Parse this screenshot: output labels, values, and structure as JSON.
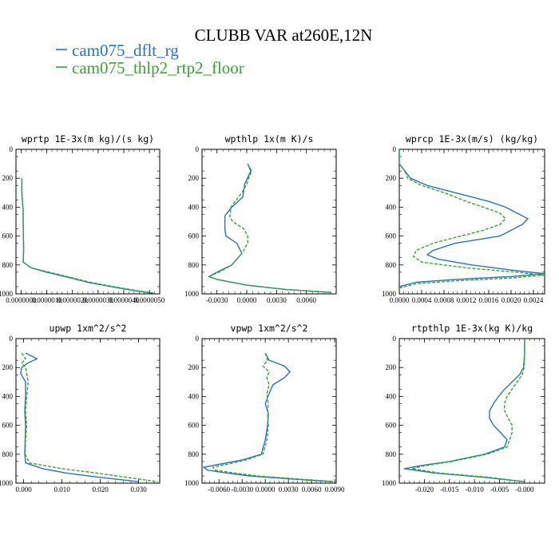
{
  "title": "CLUBB VAR at260E,12N",
  "legend": [
    {
      "name": "cam075_dflt_rg",
      "color": "#2b72b8",
      "dash": "solid"
    },
    {
      "name": "cam075_thlp2_rtp2_floor",
      "color": "#3aa335",
      "dash": "dashed"
    }
  ],
  "chart_data": [
    {
      "type": "line",
      "title": "wprtp  1E-3x(m kg)/(s kg)",
      "xlim": [
        -2e-07,
        5.4e-06
      ],
      "xticks": [
        0,
        1e-06,
        2e-06,
        3e-06,
        4e-06,
        5e-06
      ],
      "xtick_labels": [
        "0.0000000",
        "0.0000010",
        "0.0000020",
        "0.0000030",
        "0.0000040",
        "0.0000050"
      ],
      "ylim": [
        1000,
        0
      ],
      "yticks": [
        1000,
        800,
        600,
        400,
        200,
        0
      ],
      "series": [
        {
          "name": "cam075_dflt_rg",
          "y": [
            200,
            300,
            380,
            420,
            500,
            600,
            700,
            780,
            820,
            850,
            880,
            920,
            950,
            980,
            995
          ],
          "x": [
            3e-08,
            3e-08,
            6e-08,
            8e-08,
            8e-08,
            9e-08,
            1e-07,
            8e-08,
            4e-07,
            1e-06,
            1.7e-06,
            2.6e-06,
            3.5e-06,
            4.5e-06,
            5.1e-06
          ]
        },
        {
          "name": "cam075_thlp2_rtp2_floor",
          "y": [
            200,
            300,
            380,
            420,
            500,
            600,
            700,
            780,
            820,
            850,
            880,
            920,
            950,
            980,
            995
          ],
          "x": [
            3e-08,
            3e-08,
            6e-08,
            8e-08,
            8e-08,
            9e-08,
            1e-07,
            8e-08,
            4e-07,
            1.1e-06,
            1.8e-06,
            2.7e-06,
            3.6e-06,
            4.6e-06,
            5.2e-06
          ]
        }
      ]
    },
    {
      "type": "line",
      "title": "wpthlp  1x(m K)/s",
      "xlim": [
        -0.0045,
        0.009
      ],
      "xticks": [
        -0.003,
        0,
        0.003,
        0.006
      ],
      "xtick_labels": [
        "-0.0030",
        "0.0000",
        "0.0030",
        "0.0060"
      ],
      "ylim": [
        1000,
        0
      ],
      "yticks": [
        1000,
        800,
        600,
        400,
        200,
        0
      ],
      "series": [
        {
          "name": "cam075_dflt_rg",
          "y": [
            100,
            150,
            180,
            240,
            330,
            400,
            460,
            500,
            550,
            600,
            650,
            720,
            800,
            850,
            880,
            900,
            940,
            970,
            990
          ],
          "x": [
            0.0001,
            0.0004,
            0.0002,
            -0.0002,
            -0.0004,
            -0.0015,
            -0.0022,
            -0.0022,
            -0.0022,
            -0.0021,
            -0.001,
            -0.0005,
            -0.0015,
            -0.003,
            -0.0038,
            -0.003,
            0.0,
            0.004,
            0.0085
          ]
        },
        {
          "name": "cam075_thlp2_rtp2_floor",
          "y": [
            100,
            150,
            180,
            240,
            300,
            400,
            470,
            500,
            550,
            600,
            650,
            720,
            800,
            850,
            880,
            900,
            940,
            970,
            990
          ],
          "x": [
            0.0001,
            0.0005,
            0.0003,
            0.0,
            -0.0005,
            -0.0016,
            -0.0017,
            -0.0014,
            -0.0003,
            0.0001,
            0.0001,
            -0.0005,
            -0.0015,
            -0.0028,
            -0.0038,
            -0.003,
            0.0,
            0.004,
            0.0085
          ]
        }
      ]
    },
    {
      "type": "line",
      "title": "wprcp  1E-3x(m/s) (kg/kg)",
      "xlim": [
        0,
        0.0026
      ],
      "xticks": [
        0,
        0.0004,
        0.0008,
        0.0012,
        0.0016,
        0.002,
        0.0024
      ],
      "xtick_labels": [
        "0.0000",
        "0.0004",
        "0.0008",
        "0.0012",
        "0.0016",
        "0.0020",
        "0.0024"
      ],
      "ylim": [
        1000,
        0
      ],
      "yticks": [
        1000,
        800,
        600,
        400,
        200,
        0
      ],
      "series": [
        {
          "name": "cam075_dflt_rg",
          "y": [
            0,
            100,
            150,
            200,
            250,
            300,
            360,
            400,
            440,
            480,
            520,
            560,
            600,
            650,
            700,
            730,
            760,
            800,
            840,
            860,
            880,
            900,
            920,
            950
          ],
          "x": [
            0,
            0,
            0.0001,
            0.0002,
            0.0005,
            0.001,
            0.0016,
            0.0019,
            0.0021,
            0.0023,
            0.0022,
            0.002,
            0.0018,
            0.001,
            0.0006,
            0.0005,
            0.0007,
            0.0013,
            0.0021,
            0.0026,
            0.002,
            0.001,
            0.0003,
            0.0
          ]
        },
        {
          "name": "cam075_thlp2_rtp2_floor",
          "y": [
            0,
            100,
            150,
            200,
            250,
            300,
            360,
            400,
            440,
            480,
            520,
            560,
            600,
            650,
            700,
            740,
            780,
            820,
            850,
            870,
            890,
            910,
            930,
            960
          ],
          "x": [
            0,
            0,
            0.0001,
            0.00015,
            0.0004,
            0.0008,
            0.0012,
            0.0015,
            0.0018,
            0.0019,
            0.0018,
            0.0015,
            0.0011,
            0.0006,
            0.0003,
            0.00025,
            0.0004,
            0.0012,
            0.0021,
            0.0026,
            0.002,
            0.001,
            0.0003,
            0.0
          ]
        }
      ]
    },
    {
      "type": "line",
      "title": "upwp  1xm^2/s^2",
      "xlim": [
        -0.002,
        0.0355
      ],
      "xticks": [
        0,
        0.01,
        0.02,
        0.03
      ],
      "xtick_labels": [
        "0.000",
        "0.010",
        "0.020",
        "0.030"
      ],
      "ylim": [
        1000,
        0
      ],
      "yticks": [
        1000,
        800,
        600,
        400,
        200,
        0
      ],
      "series": [
        {
          "name": "cam075_dflt_rg",
          "y": [
            100,
            140,
            170,
            200,
            240,
            300,
            400,
            500,
            600,
            700,
            800,
            860,
            900,
            930,
            960,
            990
          ],
          "x": [
            0.0005,
            0.0035,
            0.001,
            -0.0005,
            -0.0008,
            0.0005,
            0.0005,
            0.0003,
            0.0005,
            0.0004,
            0.0003,
            0.0005,
            0.005,
            0.011,
            0.02,
            0.03
          ]
        },
        {
          "name": "cam075_thlp2_rtp2_floor",
          "y": [
            100,
            140,
            170,
            200,
            240,
            300,
            400,
            500,
            600,
            700,
            800,
            860,
            900,
            930,
            960,
            990
          ],
          "x": [
            -0.0005,
            0.0005,
            -0.0005,
            0.0005,
            0.0008,
            0.0012,
            0.0008,
            0.0005,
            0.0008,
            0.0005,
            0.0004,
            0.0015,
            0.01,
            0.019,
            0.027,
            0.035
          ]
        }
      ]
    },
    {
      "type": "line",
      "title": "vpwp  1xm^2/s^2",
      "xlim": [
        -0.0082,
        0.0092
      ],
      "xticks": [
        -0.006,
        -0.003,
        0,
        0.003,
        0.006,
        0.009
      ],
      "xtick_labels": [
        "-0.0060",
        "-0.0030",
        "0.0000",
        "0.0030",
        "0.0060",
        "0.0090"
      ],
      "ylim": [
        1000,
        0
      ],
      "yticks": [
        1000,
        800,
        600,
        400,
        200,
        0
      ],
      "series": [
        {
          "name": "cam075_dflt_rg",
          "y": [
            100,
            150,
            190,
            230,
            270,
            320,
            380,
            450,
            520,
            600,
            700,
            800,
            840,
            870,
            890,
            910,
            930,
            950,
            970,
            990
          ],
          "x": [
            0.0,
            0.0005,
            0.0025,
            0.0032,
            0.0025,
            0.001,
            0.0005,
            0.0,
            0.0004,
            0.0003,
            0.0,
            -0.0005,
            -0.003,
            -0.006,
            -0.008,
            -0.0075,
            -0.005,
            -0.002,
            0.003,
            0.0088
          ]
        },
        {
          "name": "cam075_thlp2_rtp2_floor",
          "y": [
            100,
            150,
            190,
            230,
            270,
            320,
            380,
            450,
            520,
            600,
            700,
            800,
            840,
            870,
            890,
            910,
            930,
            950,
            970,
            990
          ],
          "x": [
            0.0,
            0.0003,
            -0.0003,
            0.0005,
            0.0002,
            0.0005,
            0.0002,
            0.0004,
            0.0003,
            0.0004,
            0.0002,
            -0.0003,
            -0.0025,
            -0.005,
            -0.0068,
            -0.0065,
            -0.004,
            -0.001,
            0.004,
            0.0092
          ]
        }
      ]
    },
    {
      "type": "line",
      "title": "rtpthlp  1E-3x(kg K)/kg",
      "xlim": [
        -0.025,
        0.004
      ],
      "xticks": [
        -0.02,
        -0.015,
        -0.01,
        -0.005,
        0
      ],
      "xtick_labels": [
        "-0.020",
        "-0.015",
        "-0.010",
        "-0.005",
        "-0.000"
      ],
      "ylim": [
        1000,
        0
      ],
      "yticks": [
        1000,
        800,
        600,
        400,
        200,
        0
      ],
      "series": [
        {
          "name": "cam075_dflt_rg",
          "y": [
            0,
            100,
            200,
            250,
            300,
            350,
            400,
            450,
            500,
            550,
            600,
            650,
            700,
            750,
            800,
            850,
            880,
            900,
            930,
            960,
            990
          ],
          "x": [
            0,
            0,
            -0.0002,
            -0.001,
            -0.0025,
            -0.004,
            -0.0052,
            -0.0062,
            -0.007,
            -0.007,
            -0.0062,
            -0.0048,
            -0.0035,
            -0.004,
            -0.008,
            -0.015,
            -0.021,
            -0.024,
            -0.018,
            -0.008,
            0.0
          ]
        },
        {
          "name": "cam075_thlp2_rtp2_floor",
          "y": [
            0,
            100,
            200,
            250,
            300,
            350,
            400,
            450,
            500,
            550,
            600,
            650,
            700,
            750,
            800,
            850,
            880,
            900,
            930,
            960,
            990
          ],
          "x": [
            0,
            0,
            -0.0001,
            -0.0005,
            -0.0015,
            -0.0025,
            -0.0035,
            -0.004,
            -0.004,
            -0.0033,
            -0.0025,
            -0.0025,
            -0.003,
            -0.0035,
            -0.0075,
            -0.0145,
            -0.02,
            -0.0225,
            -0.017,
            -0.007,
            0.0
          ]
        }
      ]
    }
  ]
}
